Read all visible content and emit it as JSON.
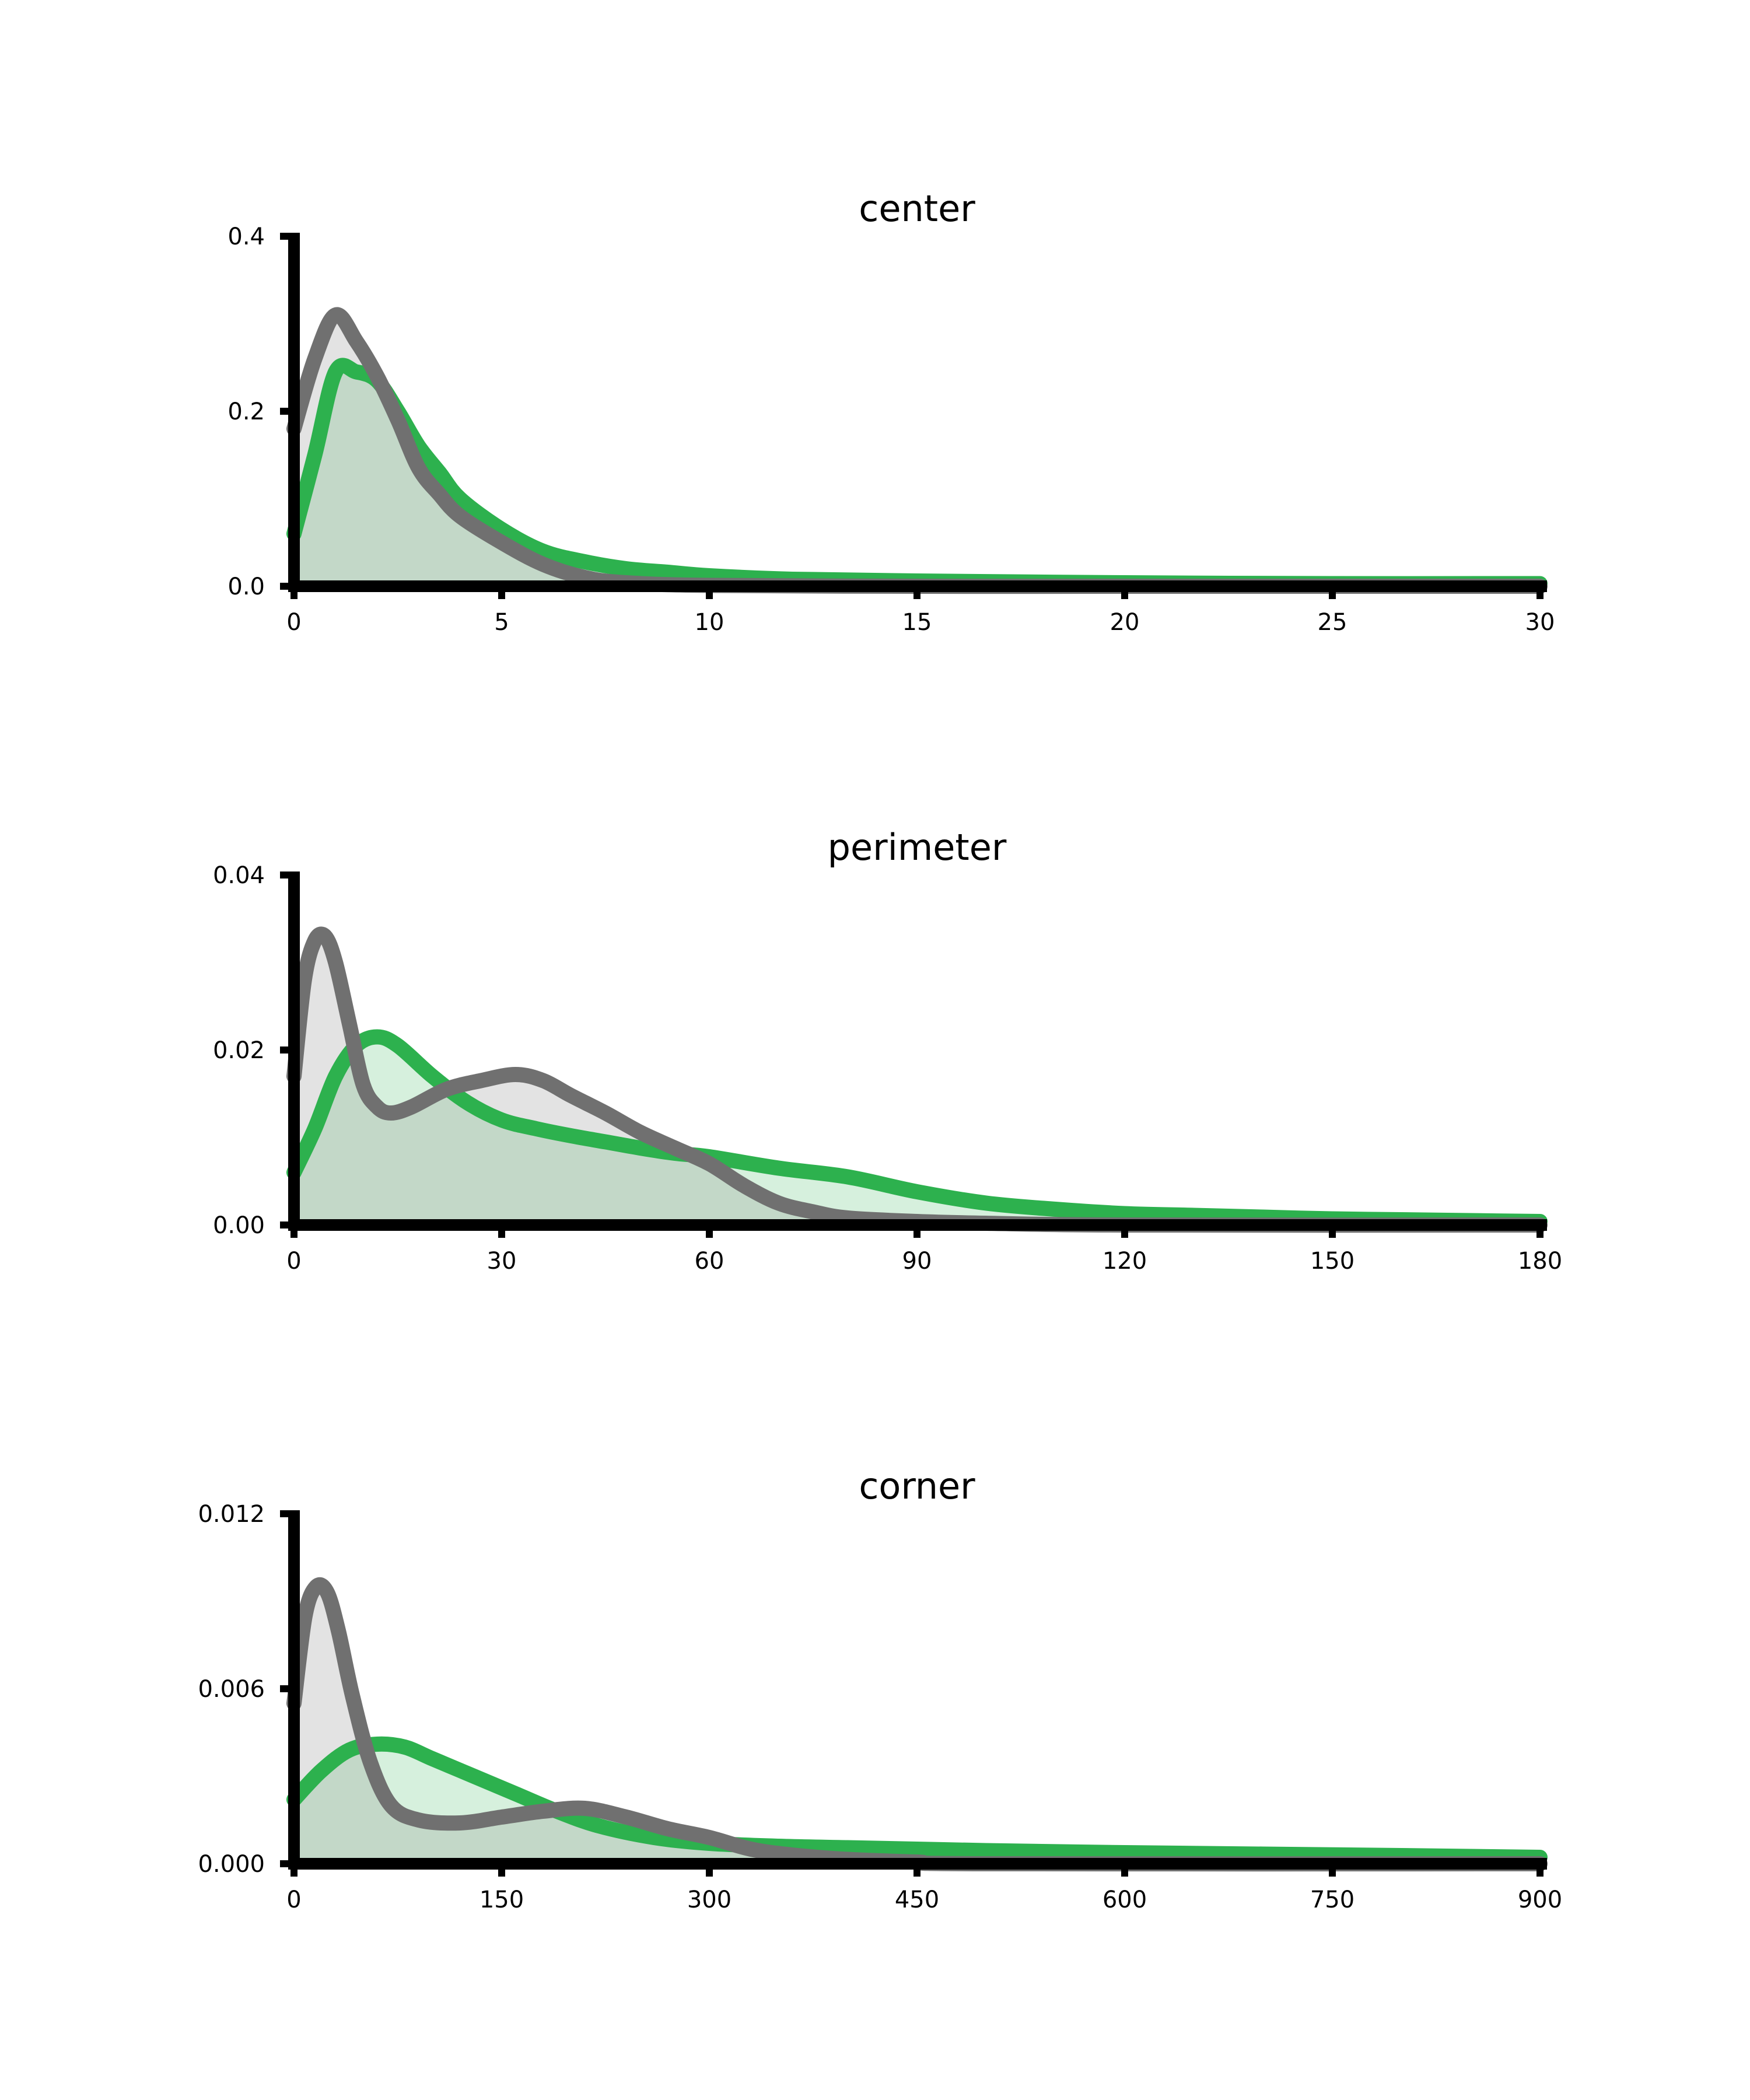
{
  "figure": {
    "colors": {
      "green_line": "#2db14e",
      "green_fill": "#d6f0dd",
      "gray_line": "#707070",
      "gray_fill": "#e3e3e3",
      "overlap_fill": "#c3d8c8",
      "axis": "#000000"
    }
  },
  "chart_data": [
    {
      "type": "area",
      "title": "center",
      "xlabel": "",
      "ylabel": "",
      "xlim": [
        0,
        30
      ],
      "ylim": [
        0,
        0.4
      ],
      "xticks": [
        0,
        5,
        10,
        15,
        20,
        25,
        30
      ],
      "xtick_labels": [
        "0",
        "5",
        "10",
        "15",
        "20",
        "25",
        "30"
      ],
      "yticks": [
        0,
        0.2,
        0.4
      ],
      "ytick_labels": [
        "0.0",
        "0.2",
        "0.4"
      ],
      "grid": false,
      "legend": null,
      "series": [
        {
          "color": "green",
          "points": [
            [
              0,
              0.06
            ],
            [
              0.5,
              0.15
            ],
            [
              1,
              0.245
            ],
            [
              1.5,
              0.245
            ],
            [
              2,
              0.235
            ],
            [
              2.5,
              0.2
            ],
            [
              3,
              0.16
            ],
            [
              3.5,
              0.13
            ],
            [
              4,
              0.1
            ],
            [
              5,
              0.065
            ],
            [
              6,
              0.04
            ],
            [
              7,
              0.028
            ],
            [
              8,
              0.02
            ],
            [
              9,
              0.016
            ],
            [
              10,
              0.012
            ],
            [
              12,
              0.008
            ],
            [
              15,
              0.006
            ],
            [
              20,
              0.004
            ],
            [
              25,
              0.003
            ],
            [
              30,
              0.003
            ]
          ]
        },
        {
          "color": "gray",
          "points": [
            [
              0,
              0.18
            ],
            [
              0.5,
              0.26
            ],
            [
              1,
              0.31
            ],
            [
              1.5,
              0.28
            ],
            [
              2,
              0.24
            ],
            [
              2.5,
              0.19
            ],
            [
              3,
              0.135
            ],
            [
              3.5,
              0.105
            ],
            [
              4,
              0.08
            ],
            [
              5,
              0.05
            ],
            [
              6,
              0.025
            ],
            [
              7,
              0.01
            ],
            [
              8,
              0.004
            ],
            [
              10,
              0.001
            ],
            [
              15,
              0.0
            ],
            [
              20,
              0.0
            ],
            [
              30,
              0.0
            ]
          ]
        }
      ]
    },
    {
      "type": "area",
      "title": "perimeter",
      "xlabel": "",
      "ylabel": "",
      "xlim": [
        0,
        180
      ],
      "ylim": [
        0,
        0.04
      ],
      "xticks": [
        0,
        30,
        60,
        90,
        120,
        150,
        180
      ],
      "xtick_labels": [
        "0",
        "30",
        "60",
        "90",
        "120",
        "150",
        "180"
      ],
      "yticks": [
        0,
        0.02,
        0.04
      ],
      "ytick_labels": [
        "0.00",
        "0.02",
        "0.04"
      ],
      "grid": false,
      "legend": null,
      "series": [
        {
          "color": "green",
          "points": [
            [
              0,
              0.006
            ],
            [
              3,
              0.011
            ],
            [
              6,
              0.017
            ],
            [
              9,
              0.0205
            ],
            [
              12,
              0.0215
            ],
            [
              15,
              0.0205
            ],
            [
              20,
              0.017
            ],
            [
              25,
              0.014
            ],
            [
              30,
              0.012
            ],
            [
              35,
              0.011
            ],
            [
              40,
              0.0102
            ],
            [
              45,
              0.0095
            ],
            [
              50,
              0.0088
            ],
            [
              55,
              0.0082
            ],
            [
              60,
              0.0078
            ],
            [
              70,
              0.0065
            ],
            [
              80,
              0.0055
            ],
            [
              90,
              0.0038
            ],
            [
              100,
              0.0025
            ],
            [
              110,
              0.0018
            ],
            [
              120,
              0.0013
            ],
            [
              130,
              0.0011
            ],
            [
              140,
              0.0009
            ],
            [
              150,
              0.0007
            ],
            [
              160,
              0.0006
            ],
            [
              170,
              0.0005
            ],
            [
              180,
              0.0004
            ]
          ]
        },
        {
          "color": "gray",
          "points": [
            [
              0,
              0.017
            ],
            [
              1.5,
              0.028
            ],
            [
              3,
              0.0325
            ],
            [
              4.5,
              0.033
            ],
            [
              6,
              0.03
            ],
            [
              8,
              0.023
            ],
            [
              10,
              0.016
            ],
            [
              12,
              0.0135
            ],
            [
              14,
              0.0128
            ],
            [
              17,
              0.0135
            ],
            [
              22,
              0.0155
            ],
            [
              27,
              0.0165
            ],
            [
              32,
              0.0172
            ],
            [
              36,
              0.0165
            ],
            [
              40,
              0.0148
            ],
            [
              45,
              0.0128
            ],
            [
              50,
              0.0106
            ],
            [
              55,
              0.0088
            ],
            [
              60,
              0.007
            ],
            [
              65,
              0.0045
            ],
            [
              70,
              0.0025
            ],
            [
              75,
              0.0015
            ],
            [
              80,
              0.0008
            ],
            [
              90,
              0.0004
            ],
            [
              100,
              0.0002
            ],
            [
              120,
              0.0
            ],
            [
              180,
              0.0
            ]
          ]
        }
      ]
    },
    {
      "type": "area",
      "title": "corner",
      "xlabel": "",
      "ylabel": "",
      "xlim": [
        0,
        900
      ],
      "ylim": [
        0,
        0.012
      ],
      "xticks": [
        0,
        150,
        300,
        450,
        600,
        750,
        900
      ],
      "xtick_labels": [
        "0",
        "150",
        "300",
        "450",
        "600",
        "750",
        "900"
      ],
      "yticks": [
        0,
        0.006,
        0.012
      ],
      "ytick_labels": [
        "0.000",
        "0.006",
        "0.012"
      ],
      "grid": false,
      "legend": null,
      "series": [
        {
          "color": "green",
          "points": [
            [
              0,
              0.0022
            ],
            [
              20,
              0.0032
            ],
            [
              40,
              0.0039
            ],
            [
              60,
              0.0041
            ],
            [
              80,
              0.004
            ],
            [
              100,
              0.0036
            ],
            [
              130,
              0.003
            ],
            [
              160,
              0.0024
            ],
            [
              190,
              0.0018
            ],
            [
              220,
              0.0013
            ],
            [
              260,
              0.0009
            ],
            [
              300,
              0.0007
            ],
            [
              350,
              0.0006
            ],
            [
              400,
              0.00055
            ],
            [
              450,
              0.0005
            ],
            [
              500,
              0.00045
            ],
            [
              600,
              0.00038
            ],
            [
              700,
              0.00033
            ],
            [
              800,
              0.00028
            ],
            [
              900,
              0.00022
            ]
          ]
        },
        {
          "color": "gray",
          "points": [
            [
              0,
              0.0055
            ],
            [
              8,
              0.0085
            ],
            [
              16,
              0.0095
            ],
            [
              24,
              0.0093
            ],
            [
              32,
              0.008
            ],
            [
              42,
              0.0058
            ],
            [
              55,
              0.0035
            ],
            [
              70,
              0.002
            ],
            [
              90,
              0.0015
            ],
            [
              120,
              0.0014
            ],
            [
              150,
              0.0016
            ],
            [
              180,
              0.0018
            ],
            [
              210,
              0.0019
            ],
            [
              240,
              0.0016
            ],
            [
              270,
              0.0012
            ],
            [
              300,
              0.0009
            ],
            [
              330,
              0.0005
            ],
            [
              360,
              0.0003
            ],
            [
              400,
              0.00015
            ],
            [
              450,
              6e-05
            ],
            [
              500,
              0.0
            ],
            [
              900,
              0.0
            ]
          ]
        }
      ]
    }
  ]
}
